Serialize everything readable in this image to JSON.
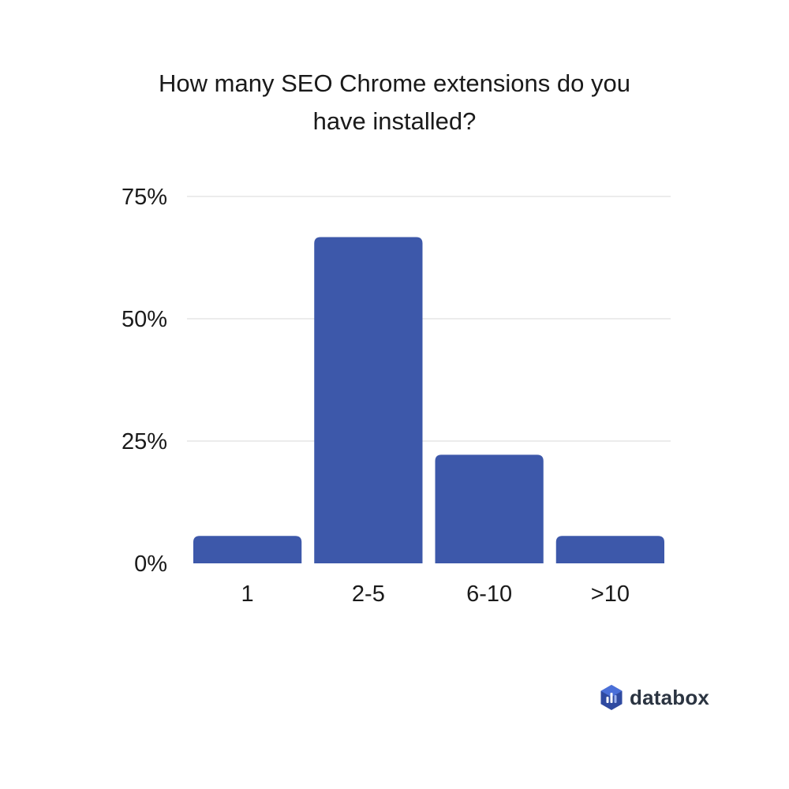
{
  "chart_data": {
    "type": "bar",
    "title_lines": [
      "How many SEO Chrome extensions do you",
      "have installed?"
    ],
    "categories": [
      "1",
      "2-5",
      "6-10",
      ">10"
    ],
    "values": [
      5.6,
      66.7,
      22.2,
      5.6
    ],
    "ylim": [
      0,
      75
    ],
    "yticks": [
      0,
      25,
      50,
      75
    ],
    "ytick_labels": [
      "0%",
      "25%",
      "50%",
      "75%"
    ],
    "grid": true,
    "bar_color": "#3d58aa",
    "grid_color": "#d9d9d9"
  },
  "brand": {
    "name": "databox",
    "icon": "databox-logo-icon",
    "colors": [
      "#2f4aa0",
      "#4a6fd8",
      "#9db3f0"
    ]
  }
}
